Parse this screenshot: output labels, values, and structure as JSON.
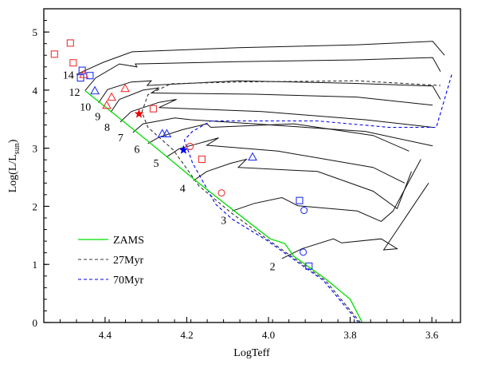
{
  "chart_data": {
    "type": "line",
    "title": "",
    "xlabel": "LogTeff",
    "ylabel_main": "Log(L/L",
    "ylabel_sub": "sun",
    "ylabel_close": ")",
    "xlim": [
      4.55,
      3.53
    ],
    "ylim": [
      0,
      5.4
    ],
    "x_reversed": true,
    "x_ticks": [
      {
        "value": 4.4,
        "label": "4.4"
      },
      {
        "value": 4.2,
        "label": "4.2"
      },
      {
        "value": 4.0,
        "label": "4.0"
      },
      {
        "value": 3.8,
        "label": "3.8"
      },
      {
        "value": 3.6,
        "label": "3.6"
      }
    ],
    "x_minor_step": 0.04,
    "y_ticks": [
      {
        "value": 0,
        "label": "0"
      },
      {
        "value": 1,
        "label": "1"
      },
      {
        "value": 2,
        "label": "2"
      },
      {
        "value": 3,
        "label": "3"
      },
      {
        "value": 4,
        "label": "4"
      },
      {
        "value": 5,
        "label": "5"
      }
    ],
    "y_minor_step": 0.2,
    "grid": false,
    "legend": {
      "placement": "bottom-left",
      "entries": [
        {
          "label": "ZAMS",
          "color": "#00dd00",
          "style": "solid"
        },
        {
          "label": "27Myr",
          "color": "#333333",
          "style": "dashed"
        },
        {
          "label": "70Myr",
          "color": "#0000ee",
          "style": "dashed"
        }
      ]
    },
    "zams": {
      "name": "ZAMS",
      "color": "#00dd00",
      "points": [
        [
          4.449,
          3.99
        ],
        [
          4.3,
          3.15
        ],
        [
          4.171,
          2.4
        ],
        [
          4.08,
          1.9
        ],
        [
          3.996,
          1.44
        ],
        [
          3.96,
          1.36
        ],
        [
          3.938,
          1.14
        ],
        [
          3.86,
          0.75
        ],
        [
          3.8,
          0.4
        ],
        [
          3.771,
          0.01
        ]
      ]
    },
    "isochrones": [
      {
        "name": "27Myr",
        "color": "#333333",
        "points": [
          [
            3.775,
            0.0
          ],
          [
            3.86,
            0.72
          ],
          [
            3.94,
            1.12
          ],
          [
            4.0,
            1.42
          ],
          [
            4.09,
            1.88
          ],
          [
            4.17,
            2.35
          ],
          [
            4.188,
            2.53
          ],
          [
            4.233,
            2.97
          ],
          [
            4.295,
            3.36
          ],
          [
            4.31,
            3.62
          ],
          [
            4.295,
            3.92
          ],
          [
            4.239,
            4.11
          ],
          [
            4.074,
            4.14
          ],
          [
            3.783,
            4.16
          ],
          [
            3.579,
            4.08
          ]
        ]
      },
      {
        "name": "70Myr",
        "color": "#0000ee",
        "points": [
          [
            3.779,
            0.0
          ],
          [
            3.865,
            0.72
          ],
          [
            3.945,
            1.12
          ],
          [
            4.005,
            1.42
          ],
          [
            4.089,
            1.78
          ],
          [
            4.13,
            2.04
          ],
          [
            4.186,
            2.75
          ],
          [
            4.206,
            3.14
          ],
          [
            4.186,
            3.29
          ],
          [
            4.141,
            3.47
          ],
          [
            3.88,
            3.47
          ],
          [
            3.706,
            3.36
          ],
          [
            3.589,
            3.36
          ],
          [
            3.55,
            4.3
          ]
        ]
      }
    ],
    "tracks": [
      {
        "mass_label": "14",
        "label_at": [
          4.49,
          4.2
        ],
        "points": [
          [
            4.47,
            4.27
          ],
          [
            4.404,
            4.48
          ],
          [
            4.334,
            4.66
          ],
          [
            4.074,
            4.73
          ],
          [
            3.783,
            4.78
          ],
          [
            3.598,
            4.84
          ],
          [
            3.569,
            4.6
          ]
        ]
      },
      {
        "mass_label": "12",
        "label_at": [
          4.475,
          3.9
        ],
        "points": [
          [
            4.449,
            3.99
          ],
          [
            4.423,
            4.21
          ],
          [
            4.365,
            4.45
          ],
          [
            4.322,
            4.4
          ],
          [
            4.326,
            4.45
          ],
          [
            4.074,
            4.49
          ],
          [
            3.783,
            4.52
          ],
          [
            3.598,
            4.56
          ],
          [
            3.579,
            4.32
          ]
        ]
      },
      {
        "mass_label": "10",
        "label_at": [
          4.448,
          3.65
        ],
        "points": [
          [
            4.416,
            3.78
          ],
          [
            4.394,
            4.01
          ],
          [
            4.336,
            4.14
          ],
          [
            4.287,
            4.16
          ],
          [
            4.297,
            4.08
          ],
          [
            4.074,
            4.16
          ],
          [
            3.802,
            4.12
          ],
          [
            3.598,
            4.07
          ],
          [
            3.579,
            3.84
          ]
        ]
      },
      {
        "mass_label": "9",
        "label_at": [
          4.418,
          3.48
        ],
        "points": [
          [
            4.386,
            3.62
          ],
          [
            4.365,
            3.84
          ],
          [
            4.307,
            4.0
          ],
          [
            4.268,
            4.04
          ],
          [
            4.287,
            3.95
          ],
          [
            4.035,
            3.93
          ],
          [
            3.783,
            3.88
          ],
          [
            3.598,
            3.74
          ]
        ]
      },
      {
        "mass_label": "8",
        "label_at": [
          4.395,
          3.3
        ],
        "points": [
          [
            4.363,
            3.45
          ],
          [
            4.336,
            3.63
          ],
          [
            4.268,
            3.79
          ],
          [
            4.225,
            3.84
          ],
          [
            4.268,
            3.7
          ],
          [
            4.016,
            3.63
          ],
          [
            3.763,
            3.49
          ],
          [
            3.598,
            3.36
          ]
        ]
      },
      {
        "mass_label": "7",
        "label_at": [
          4.362,
          3.12
        ],
        "points": [
          [
            4.332,
            3.27
          ],
          [
            4.307,
            3.42
          ],
          [
            4.229,
            3.52
          ],
          [
            4.19,
            3.49
          ],
          [
            4.035,
            3.42
          ],
          [
            3.763,
            3.29
          ],
          [
            3.598,
            3.04
          ]
        ]
      },
      {
        "mass_label": "6",
        "label_at": [
          4.322,
          2.92
        ],
        "points": [
          [
            4.295,
            3.08
          ],
          [
            4.268,
            3.19
          ],
          [
            4.21,
            3.32
          ],
          [
            4.151,
            3.42
          ],
          [
            4.141,
            3.36
          ],
          [
            3.938,
            3.42
          ],
          [
            3.744,
            3.22
          ],
          [
            3.656,
            2.95
          ]
        ]
      },
      {
        "mass_label": "5",
        "label_at": [
          4.275,
          2.68
        ],
        "points": [
          [
            4.249,
            2.85
          ],
          [
            4.219,
            2.99
          ],
          [
            4.151,
            3.12
          ],
          [
            4.122,
            3.18
          ],
          [
            4.151,
            3.05
          ],
          [
            3.977,
            2.95
          ],
          [
            3.744,
            2.67
          ],
          [
            3.667,
            2.4
          ]
        ]
      },
      {
        "mass_label": "4",
        "label_at": [
          4.21,
          2.25
        ],
        "points": [
          [
            4.184,
            2.44
          ],
          [
            4.151,
            2.6
          ],
          [
            4.093,
            2.74
          ],
          [
            4.054,
            2.81
          ],
          [
            4.074,
            2.67
          ],
          [
            3.88,
            2.6
          ],
          [
            3.744,
            2.26
          ],
          [
            3.685,
            1.96
          ],
          [
            3.65,
            2.6
          ]
        ]
      },
      {
        "mass_label": "3",
        "label_at": [
          4.11,
          1.7
        ],
        "points": [
          [
            4.089,
            1.92
          ],
          [
            4.035,
            2.05
          ],
          [
            3.967,
            2.15
          ],
          [
            3.928,
            2.01
          ],
          [
            3.783,
            1.92
          ],
          [
            3.724,
            1.74
          ],
          [
            3.695,
            1.92
          ],
          [
            3.627,
            2.81
          ]
        ]
      },
      {
        "mass_label": "2",
        "label_at": [
          3.99,
          0.9
        ],
        "points": [
          [
            3.967,
            1.1
          ],
          [
            3.918,
            1.27
          ],
          [
            3.841,
            1.44
          ],
          [
            3.821,
            1.37
          ],
          [
            3.724,
            1.44
          ],
          [
            3.685,
            1.27
          ],
          [
            3.718,
            1.25
          ],
          [
            3.608,
            2.4
          ]
        ]
      }
    ],
    "stars": [
      {
        "shape": "square",
        "color": "#ee3333",
        "x": 4.524,
        "y": 4.62
      },
      {
        "shape": "square",
        "color": "#ee3333",
        "x": 4.485,
        "y": 4.81
      },
      {
        "shape": "square",
        "color": "#ee3333",
        "x": 4.478,
        "y": 4.47
      },
      {
        "shape": "square",
        "color": "#ee3333",
        "x": 4.282,
        "y": 3.68
      },
      {
        "shape": "square",
        "color": "#ee3333",
        "x": 4.163,
        "y": 2.81
      },
      {
        "shape": "square",
        "color": "#2233ee",
        "x": 4.456,
        "y": 4.34
      },
      {
        "shape": "square",
        "color": "#2233ee",
        "x": 4.46,
        "y": 4.21
      },
      {
        "shape": "square",
        "color": "#2233ee",
        "x": 4.437,
        "y": 4.25
      },
      {
        "shape": "square",
        "color": "#2233ee",
        "x": 3.924,
        "y": 2.1
      },
      {
        "shape": "square",
        "color": "#2233ee",
        "x": 3.901,
        "y": 0.97
      },
      {
        "shape": "triangle",
        "color": "#ee3333",
        "x": 4.452,
        "y": 4.27
      },
      {
        "shape": "triangle",
        "color": "#ee3333",
        "x": 4.351,
        "y": 4.03
      },
      {
        "shape": "triangle",
        "color": "#ee3333",
        "x": 4.384,
        "y": 3.88
      },
      {
        "shape": "triangle",
        "color": "#ee3333",
        "x": 4.396,
        "y": 3.74
      },
      {
        "shape": "triangle",
        "color": "#2233ee",
        "x": 4.425,
        "y": 3.99
      },
      {
        "shape": "triangle",
        "color": "#2233ee",
        "x": 4.26,
        "y": 3.25
      },
      {
        "shape": "triangle",
        "color": "#2233ee",
        "x": 4.249,
        "y": 3.25
      },
      {
        "shape": "triangle",
        "color": "#2233ee",
        "x": 4.039,
        "y": 2.85
      },
      {
        "shape": "star",
        "color": "#ee0000",
        "x": 4.317,
        "y": 3.59
      },
      {
        "shape": "star",
        "color": "#0000ee",
        "x": 4.208,
        "y": 2.97
      },
      {
        "shape": "circle",
        "color": "#ee3333",
        "x": 4.192,
        "y": 3.03
      },
      {
        "shape": "circle",
        "color": "#ee3333",
        "x": 4.115,
        "y": 2.23
      },
      {
        "shape": "circle",
        "color": "#2233ee",
        "x": 3.913,
        "y": 1.93
      },
      {
        "shape": "circle",
        "color": "#2233ee",
        "x": 3.915,
        "y": 1.21
      }
    ]
  }
}
